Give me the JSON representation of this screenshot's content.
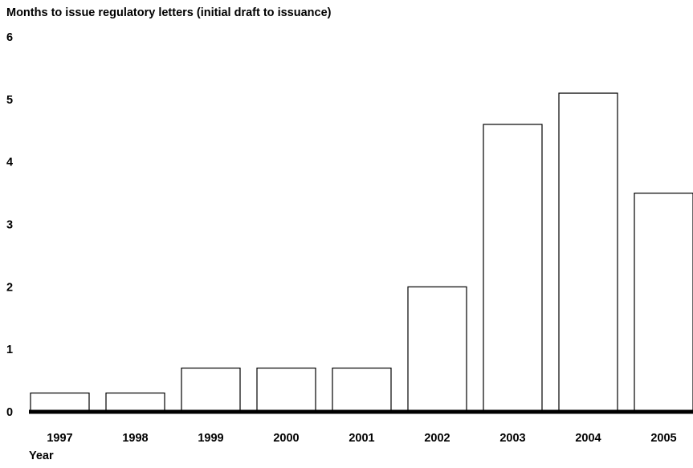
{
  "chart_data": {
    "type": "bar",
    "title": "Months to issue regulatory letters (initial draft to issuance)",
    "xlabel": "Year",
    "ylabel": "",
    "categories": [
      "1997",
      "1998",
      "1999",
      "2000",
      "2001",
      "2002",
      "2003",
      "2004",
      "2005"
    ],
    "values": [
      0.3,
      0.3,
      0.7,
      0.7,
      0.7,
      2.0,
      4.6,
      5.1,
      3.5
    ],
    "ylim": [
      0,
      6
    ],
    "yticks": [
      "0",
      "1",
      "2",
      "3",
      "4",
      "5",
      "6"
    ],
    "grid": false,
    "legend": "none",
    "bar_fill": "#ffffff",
    "bar_stroke": "#000000"
  }
}
